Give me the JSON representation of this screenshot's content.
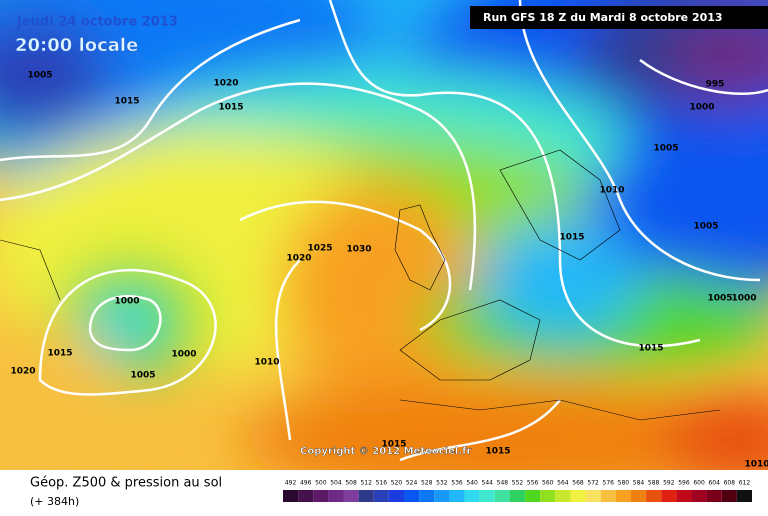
{
  "header": {
    "date": "Jeudi 24 octobre 2013",
    "time": "20:00 locale",
    "run": "Run GFS 18 Z du Mardi 8 octobre 2013"
  },
  "map": {
    "isobar_labels": [
      1005,
      1015,
      1020,
      1015,
      995,
      1000,
      1005,
      1010,
      1005,
      1015,
      1025,
      1030,
      1020,
      1005,
      1000,
      1000,
      1015,
      1000,
      1005,
      1010,
      1020,
      1015,
      1015,
      1015,
      1010
    ],
    "copyright": "Copyright © 2012 Meteociel.fr"
  },
  "legend": {
    "title": "Géop. Z500 & pression au sol",
    "lead_time": "(+ 384h)",
    "scale": {
      "values": [
        492,
        496,
        500,
        504,
        508,
        512,
        516,
        520,
        524,
        528,
        532,
        536,
        540,
        544,
        548,
        552,
        556,
        560,
        564,
        568,
        572,
        576,
        580,
        584,
        588,
        592,
        596,
        600,
        604,
        608,
        612
      ],
      "colors": [
        "#2b0a2e",
        "#46104a",
        "#5c1a66",
        "#6e2a84",
        "#7e3f9c",
        "#303a8c",
        "#2a40b8",
        "#1a3ce0",
        "#0a55f0",
        "#0a78f5",
        "#1898f8",
        "#20b8f8",
        "#30d8f0",
        "#40e8d0",
        "#40e0a0",
        "#30d060",
        "#50d820",
        "#90e020",
        "#c8e830",
        "#f0f040",
        "#f8e060",
        "#f8c040",
        "#f8a020",
        "#f08010",
        "#e85010",
        "#e02010",
        "#c00818",
        "#a00020",
        "#780018",
        "#500010",
        "#101010"
      ]
    }
  }
}
